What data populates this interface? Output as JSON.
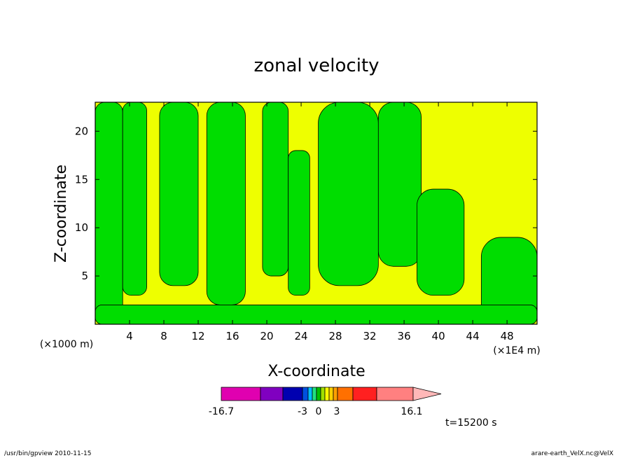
{
  "chart_data": {
    "type": "heatmap",
    "title": "zonal velocity",
    "xlabel": "X-coordinate",
    "ylabel": "Z-coordinate",
    "x_unit": "(×1E4 m)",
    "y_unit": "(×1000 m)",
    "xlim": [
      0,
      51.5
    ],
    "ylim": [
      0,
      23
    ],
    "x_ticks": [
      4,
      8,
      12,
      16,
      20,
      24,
      28,
      32,
      36,
      40,
      44,
      48
    ],
    "y_ticks": [
      5,
      10,
      15,
      20
    ],
    "fields": [
      {
        "x0": 0.0,
        "x1": 3.2,
        "z0": 0.0,
        "z1": 23.0,
        "level": "negative"
      },
      {
        "x0": 3.2,
        "x1": 6.0,
        "z0": 3.0,
        "z1": 23.0,
        "level": "negative"
      },
      {
        "x0": 7.5,
        "x1": 12.0,
        "z0": 4.0,
        "z1": 23.0,
        "level": "negative"
      },
      {
        "x0": 13.0,
        "x1": 17.5,
        "z0": 2.0,
        "z1": 23.0,
        "level": "negative"
      },
      {
        "x0": 19.5,
        "x1": 22.5,
        "z0": 5.0,
        "z1": 23.0,
        "level": "negative"
      },
      {
        "x0": 22.5,
        "x1": 25.0,
        "z0": 3.0,
        "z1": 18.0,
        "level": "negative"
      },
      {
        "x0": 26.0,
        "x1": 33.0,
        "z0": 4.0,
        "z1": 23.0,
        "level": "negative"
      },
      {
        "x0": 33.0,
        "x1": 38.0,
        "z0": 6.0,
        "z1": 23.0,
        "level": "negative"
      },
      {
        "x0": 37.5,
        "x1": 43.0,
        "z0": 3.0,
        "z1": 14.0,
        "level": "negative"
      },
      {
        "x0": 45.0,
        "x1": 51.5,
        "z0": 0.0,
        "z1": 9.0,
        "level": "negative"
      },
      {
        "x0": 0.0,
        "x1": 51.5,
        "z0": 0.0,
        "z1": 2.0,
        "level": "negative"
      }
    ],
    "colorbar": {
      "colors": [
        "#e000b0",
        "#8000c0",
        "#0000b0",
        "#0050e0",
        "#00c0ff",
        "#20e080",
        "#00c000",
        "#a0e000",
        "#ffff00",
        "#ffd000",
        "#ffa000",
        "#ff7000",
        "#ff2020",
        "#ff8080",
        "#ffb8b8"
      ],
      "tick_labels": [
        "-16.7",
        "-3",
        "0",
        "3",
        "16.1"
      ],
      "negative_color": "#00dd00",
      "positive_color": "#eeff00"
    },
    "time_label": "t=15200 s"
  },
  "footer": {
    "left": "/usr/bin/gpview   2010-11-15",
    "right": "arare-earth_VelX.nc@VelX"
  }
}
